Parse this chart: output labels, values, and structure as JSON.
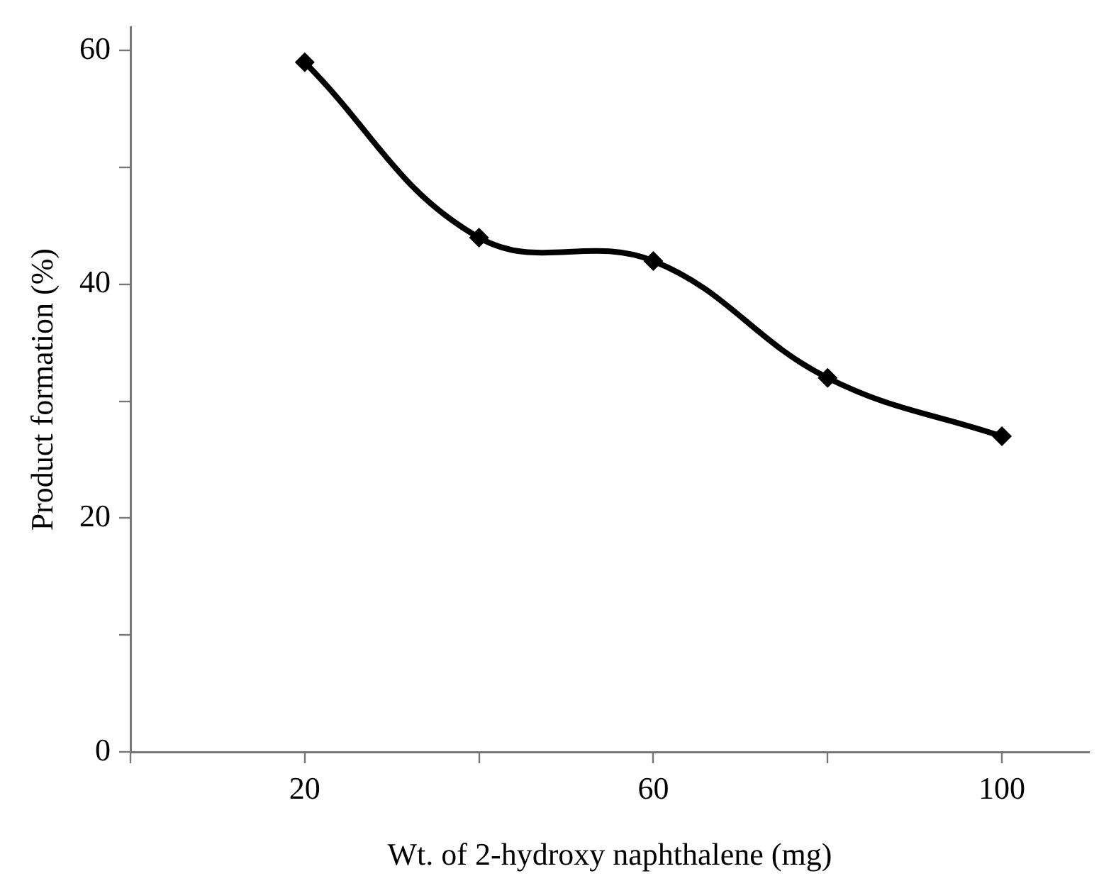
{
  "chart_data": {
    "type": "line",
    "xlabel": "Wt. of 2-hydroxy naphthalene (mg)",
    "ylabel": "Product formation (%)",
    "x": [
      20,
      40,
      60,
      80,
      100
    ],
    "series": [
      {
        "color": "#000000",
        "values": [
          59,
          44,
          42,
          32,
          27
        ]
      }
    ],
    "xlim": [
      0,
      110
    ],
    "xticks": [
      {
        "value": 0,
        "label": null
      },
      20,
      {
        "value": 40,
        "label": null
      },
      60,
      {
        "value": 80,
        "label": null
      },
      100
    ],
    "ylim": [
      0,
      62
    ],
    "yticks": [
      0,
      {
        "value": 10,
        "label": null
      },
      20,
      {
        "value": 30,
        "label": null
      },
      40,
      {
        "value": 50,
        "label": null
      },
      60
    ],
    "grid": false,
    "legend": false,
    "marker": "diamond",
    "line_style": "solid"
  }
}
